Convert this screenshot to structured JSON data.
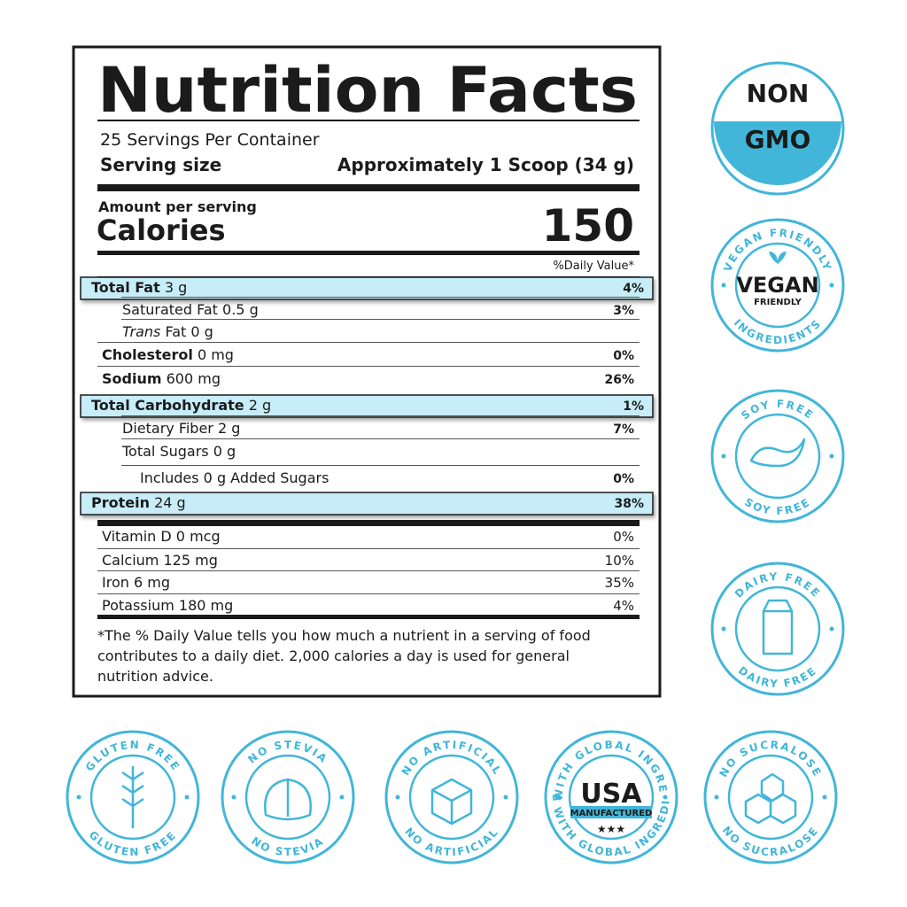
{
  "header": {
    "title": "Nutrition Facts",
    "servings": "25 Servings Per Container",
    "serving_size_label": "Serving size",
    "serving_size": "Approximately 1 Scoop (34 g)",
    "amount_per_serving": "Amount per serving",
    "calories_label": "Calories",
    "calories": 150,
    "daily_value_header": "%Daily Value*"
  },
  "nutrients": [
    {
      "name": "Total Fat",
      "amount": "3 g",
      "dv": "4%",
      "level": 0,
      "highlight": true
    },
    {
      "name": "Saturated Fat",
      "amount": "0.5 g",
      "dv": "3%",
      "level": 1
    },
    {
      "name_italic": "Trans",
      "name": "Fat",
      "amount": "0 g",
      "level": 1
    },
    {
      "name": "Cholesterol",
      "amount": "0 mg",
      "dv": "0%",
      "level": 0
    },
    {
      "name": "Sodium",
      "amount": "600 mg",
      "dv": "26%",
      "level": 0
    },
    {
      "name": "Total Carbohydrate",
      "amount": "2 g",
      "dv": "1%",
      "level": 0,
      "highlight": true
    },
    {
      "name": "Dietary Fiber",
      "amount": "2 g",
      "dv": "7%",
      "level": 1
    },
    {
      "name": "Total Sugars",
      "amount": "0 g",
      "level": 1
    },
    {
      "name": "Includes",
      "amount": "0 g Added Sugars",
      "dv": "0%",
      "level": 2
    },
    {
      "name": "Protein",
      "amount": "24 g",
      "dv": "38%",
      "level": 0,
      "highlight": true
    }
  ],
  "vitamins": [
    {
      "name": "Vitamin D",
      "amount": "0 mcg",
      "dv": "0%"
    },
    {
      "name": "Calcium",
      "amount": "125 mg",
      "dv": "10%"
    },
    {
      "name": "Iron",
      "amount": "6 mg",
      "dv": "35%"
    },
    {
      "name": "Potassium",
      "amount": "180 mg",
      "dv": "4%"
    }
  ],
  "footnote": [
    "*The % Daily Value tells you how much a nutrient in a serving of food",
    "contributes to a daily diet. 2,000 calories a day is used for general",
    "nutrition advice."
  ],
  "badges": [
    {
      "lines": [
        "NON",
        "GMO"
      ]
    },
    {
      "top": "VEGAN FRIENDLY",
      "bottom": "INGREDIENTS",
      "lines": [
        "VEGAN",
        "FRIENDLY"
      ]
    },
    {
      "top": "SOY FREE",
      "bottom": "SOY FREE"
    },
    {
      "top": "DAIRY FREE",
      "bottom": "DAIRY FREE"
    },
    {
      "top": "GLUTEN FREE",
      "bottom": "GLUTEN FREE"
    },
    {
      "top": "NO STEVIA",
      "bottom": "NO STEVIA"
    },
    {
      "top": "NO ARTIFICIAL",
      "bottom": "NO ARTIFICIAL"
    },
    {
      "top": "MADE WITH GLOBAL INGREDIENTS",
      "bottom": "MADE WITH GLOBAL INGREDIENTS",
      "lines": [
        "USA",
        "MANUFACTURED"
      ]
    },
    {
      "top": "NO SUCRALOSE",
      "bottom": "NO SUCRALOSE"
    }
  ]
}
